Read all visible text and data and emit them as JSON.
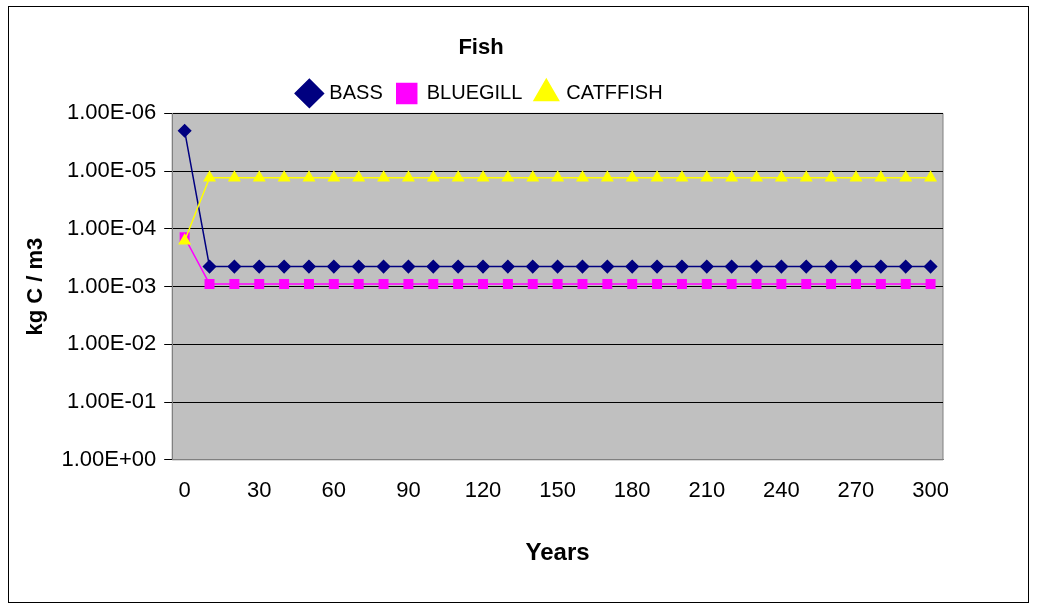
{
  "chart_data": {
    "type": "line",
    "title": "Fish",
    "xlabel": "Years",
    "ylabel": "kg C / m3",
    "x": [
      0,
      10,
      20,
      30,
      40,
      50,
      60,
      70,
      80,
      90,
      100,
      110,
      120,
      130,
      140,
      150,
      160,
      170,
      180,
      190,
      200,
      210,
      220,
      230,
      240,
      250,
      260,
      270,
      280,
      290,
      300
    ],
    "series": [
      {
        "name": "BASS",
        "color": "#000080",
        "marker": "diamond",
        "values": [
          2e-06,
          0.00045,
          0.00045,
          0.00045,
          0.00045,
          0.00045,
          0.00045,
          0.00045,
          0.00045,
          0.00045,
          0.00045,
          0.00045,
          0.00045,
          0.00045,
          0.00045,
          0.00045,
          0.00045,
          0.00045,
          0.00045,
          0.00045,
          0.00045,
          0.00045,
          0.00045,
          0.00045,
          0.00045,
          0.00045,
          0.00045,
          0.00045,
          0.00045,
          0.00045,
          0.00045
        ]
      },
      {
        "name": "BLUEGILL",
        "color": "#ff00ff",
        "marker": "square",
        "values": [
          0.00014,
          0.0009,
          0.0009,
          0.0009,
          0.0009,
          0.0009,
          0.0009,
          0.0009,
          0.0009,
          0.0009,
          0.0009,
          0.0009,
          0.0009,
          0.0009,
          0.0009,
          0.0009,
          0.0009,
          0.0009,
          0.0009,
          0.0009,
          0.0009,
          0.0009,
          0.0009,
          0.0009,
          0.0009,
          0.0009,
          0.0009,
          0.0009,
          0.0009,
          0.0009,
          0.0009
        ]
      },
      {
        "name": "CATFFISH",
        "color": "#ffff00",
        "marker": "triangle",
        "values": [
          0.00016,
          1.3e-05,
          1.3e-05,
          1.3e-05,
          1.3e-05,
          1.3e-05,
          1.3e-05,
          1.3e-05,
          1.3e-05,
          1.3e-05,
          1.3e-05,
          1.3e-05,
          1.3e-05,
          1.3e-05,
          1.3e-05,
          1.3e-05,
          1.3e-05,
          1.3e-05,
          1.3e-05,
          1.3e-05,
          1.3e-05,
          1.3e-05,
          1.3e-05,
          1.3e-05,
          1.3e-05,
          1.3e-05,
          1.3e-05,
          1.3e-05,
          1.3e-05,
          1.3e-05,
          1.3e-05
        ]
      }
    ],
    "log": "y",
    "ylim": [
      1,
      1e-06
    ],
    "yticks": [
      {
        "value": 1,
        "label": "1.00E+00"
      },
      {
        "value": 0.1,
        "label": "1.00E-01"
      },
      {
        "value": 0.01,
        "label": "1.00E-02"
      },
      {
        "value": 0.001,
        "label": "1.00E-03"
      },
      {
        "value": 0.0001,
        "label": "1.00E-04"
      },
      {
        "value": 1e-05,
        "label": "1.00E-05"
      },
      {
        "value": 1e-06,
        "label": "1.00E-06"
      }
    ],
    "xlim": [
      -5,
      305
    ],
    "xticks": [
      0,
      30,
      60,
      90,
      120,
      150,
      180,
      210,
      240,
      270,
      300
    ],
    "grid": "y",
    "legend": "top",
    "line_style": "solid"
  }
}
